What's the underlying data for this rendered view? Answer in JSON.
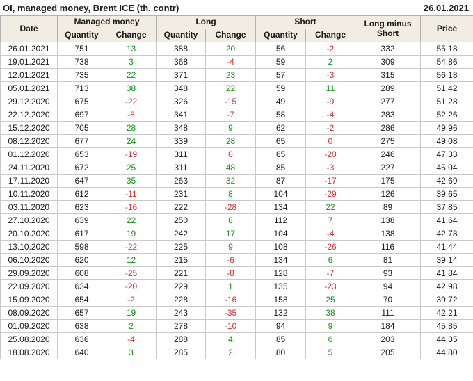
{
  "title": "OI, managed money, Brent ICE (th. contr)",
  "report_date": "26.01.2021",
  "colors": {
    "positive_change": "#149414",
    "negative_change": "#d03030",
    "header_bg": "#f1ede3",
    "text": "#1a1a1a"
  },
  "headers": {
    "date": "Date",
    "managed_money": "Managed money",
    "long": "Long",
    "short": "Short",
    "long_minus_short": "Long minus Short",
    "price": "Price",
    "quantity": "Quantity",
    "change": "Change"
  },
  "chart_data": {
    "type": "table",
    "title": "OI, managed money, Brent ICE (th. contr)",
    "as_of_date": "26.01.2021",
    "column_groups": [
      "Date",
      "Managed money",
      "Long",
      "Short",
      "Long minus Short",
      "Price"
    ],
    "columns": [
      "Date",
      "Managed money Quantity",
      "Managed money Change",
      "Long Quantity",
      "Long Change",
      "Short Quantity",
      "Short Change",
      "Long minus Short",
      "Price"
    ],
    "change_column_indexes": [
      2,
      4,
      6
    ],
    "rows": [
      [
        "26.01.2021",
        751,
        13,
        388,
        20,
        56,
        -2,
        332,
        "55.18"
      ],
      [
        "19.01.2021",
        738,
        3,
        368,
        -4,
        59,
        2,
        309,
        "54.86"
      ],
      [
        "12.01.2021",
        735,
        22,
        371,
        23,
        57,
        -3,
        315,
        "56.18"
      ],
      [
        "05.01.2021",
        713,
        38,
        348,
        22,
        59,
        11,
        289,
        "51.42"
      ],
      [
        "29.12.2020",
        675,
        -22,
        326,
        -15,
        49,
        -9,
        277,
        "51.28"
      ],
      [
        "22.12.2020",
        697,
        -8,
        341,
        -7,
        58,
        -4,
        283,
        "52.26"
      ],
      [
        "15.12.2020",
        705,
        28,
        348,
        9,
        62,
        -2,
        286,
        "49.96"
      ],
      [
        "08.12.2020",
        677,
        24,
        339,
        28,
        65,
        0,
        275,
        "49.08"
      ],
      [
        "01.12.2020",
        653,
        -19,
        311,
        0,
        65,
        -20,
        246,
        "47.33"
      ],
      [
        "24.11.2020",
        672,
        25,
        311,
        48,
        85,
        -3,
        227,
        "45.04"
      ],
      [
        "17.11.2020",
        647,
        35,
        263,
        32,
        87,
        -17,
        175,
        "42.69"
      ],
      [
        "10.11.2020",
        612,
        -11,
        231,
        8,
        104,
        -29,
        126,
        "39.65"
      ],
      [
        "03.11.2020",
        623,
        -16,
        222,
        -28,
        134,
        22,
        89,
        "37.85"
      ],
      [
        "27.10.2020",
        639,
        22,
        250,
        8,
        112,
        7,
        138,
        "41.64"
      ],
      [
        "20.10.2020",
        617,
        19,
        242,
        17,
        104,
        -4,
        138,
        "42.78"
      ],
      [
        "13.10.2020",
        598,
        -22,
        225,
        9,
        108,
        -26,
        116,
        "41.44"
      ],
      [
        "06.10.2020",
        620,
        12,
        215,
        -6,
        134,
        6,
        81,
        "39.14"
      ],
      [
        "29.09.2020",
        608,
        -25,
        221,
        -8,
        128,
        -7,
        93,
        "41.84"
      ],
      [
        "22.09.2020",
        634,
        -20,
        229,
        1,
        135,
        -23,
        94,
        "42.98"
      ],
      [
        "15.09.2020",
        654,
        -2,
        228,
        -16,
        158,
        25,
        70,
        "39.72"
      ],
      [
        "08.09.2020",
        657,
        19,
        243,
        -35,
        132,
        38,
        111,
        "42.21"
      ],
      [
        "01.09.2020",
        638,
        2,
        278,
        -10,
        94,
        9,
        184,
        "45.85"
      ],
      [
        "25.08.2020",
        636,
        -4,
        288,
        4,
        85,
        6,
        203,
        "44.35"
      ],
      [
        "18.08.2020",
        640,
        3,
        285,
        2,
        80,
        5,
        205,
        "44.80"
      ]
    ]
  }
}
